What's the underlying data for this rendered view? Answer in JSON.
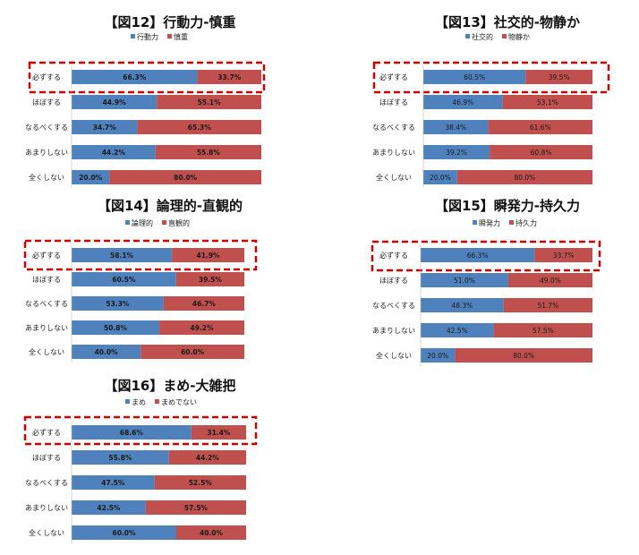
{
  "colors": {
    "series_a": "#4F81BD",
    "series_b": "#C0504D",
    "highlight": "#CC0000"
  },
  "chart_data": [
    {
      "type": "bar",
      "orientation": "horizontal",
      "stacked": "100%",
      "title": "【図12】行動力-慎重",
      "categories": [
        "必ずする",
        "ほぼする",
        "なるべくする",
        "あまりしない",
        "全くしない"
      ],
      "series": [
        {
          "name": "行動力",
          "values": [
            66.3,
            44.9,
            34.7,
            44.2,
            20.0
          ],
          "labels": [
            "66.3%",
            "44.9%",
            "34.7%",
            "44.2%",
            "20.0%"
          ]
        },
        {
          "name": "慎重",
          "values": [
            33.7,
            55.1,
            65.3,
            55.8,
            80.0
          ],
          "labels": [
            "33.7%",
            "55.1%",
            "65.3%",
            "55.8%",
            "80.0%"
          ]
        }
      ],
      "highlighted_category": "必ずする",
      "legend": "top"
    },
    {
      "type": "bar",
      "orientation": "horizontal",
      "stacked": "100%",
      "title": "【図13】社交的-物静か",
      "categories": [
        "必ずする",
        "ほぼする",
        "なるべくする",
        "あまりしない",
        "全くしない"
      ],
      "series": [
        {
          "name": "社交的",
          "values": [
            60.5,
            46.9,
            38.4,
            39.2,
            20.0
          ],
          "labels": [
            "60.5%",
            "46.9%",
            "38.4%",
            "39.2%",
            "20.0%"
          ]
        },
        {
          "name": "物静か",
          "values": [
            39.5,
            53.1,
            61.6,
            60.8,
            80.0
          ],
          "labels": [
            "39.5%",
            "53.1%",
            "61.6%",
            "60.8%",
            "80.0%"
          ]
        }
      ],
      "highlighted_category": "必ずする",
      "legend": "top"
    },
    {
      "type": "bar",
      "orientation": "horizontal",
      "stacked": "100%",
      "title": "【図14】論理的-直観的",
      "categories": [
        "必ずする",
        "ほぼする",
        "なるべくする",
        "あまりしない",
        "全くしない"
      ],
      "series": [
        {
          "name": "論理的",
          "values": [
            58.1,
            60.5,
            53.3,
            50.8,
            40.0
          ],
          "labels": [
            "58.1%",
            "60.5%",
            "53.3%",
            "50.8%",
            "40.0%"
          ]
        },
        {
          "name": "直観的",
          "values": [
            41.9,
            39.5,
            46.7,
            49.2,
            60.0
          ],
          "labels": [
            "41.9%",
            "39.5%",
            "46.7%",
            "49.2%",
            "60.0%"
          ]
        }
      ],
      "highlighted_category": "必ずする",
      "legend": "top"
    },
    {
      "type": "bar",
      "orientation": "horizontal",
      "stacked": "100%",
      "title": "【図15】瞬発力-持久力",
      "categories": [
        "必ずする",
        "ほぼする",
        "なるべくする",
        "あまりしない",
        "全くしない"
      ],
      "series": [
        {
          "name": "瞬発力",
          "values": [
            66.3,
            51.0,
            48.3,
            42.5,
            20.0
          ],
          "labels": [
            "66.3%",
            "51.0%",
            "48.3%",
            "42.5%",
            "20.0%"
          ]
        },
        {
          "name": "持久力",
          "values": [
            33.7,
            49.0,
            51.7,
            57.5,
            80.0
          ],
          "labels": [
            "33.7%",
            "49.0%",
            "51.7%",
            "57.5%",
            "80.0%"
          ]
        }
      ],
      "highlighted_category": "必ずする",
      "legend": "top"
    },
    {
      "type": "bar",
      "orientation": "horizontal",
      "stacked": "100%",
      "title": "【図16】まめ-大雑把",
      "categories": [
        "必ずする",
        "ほぼする",
        "なるべくする",
        "あまりしない",
        "全くしない"
      ],
      "series": [
        {
          "name": "まめ",
          "values": [
            68.6,
            55.8,
            47.5,
            42.5,
            60.0
          ],
          "labels": [
            "68.6%",
            "55.8%",
            "47.5%",
            "42.5%",
            "60.0%"
          ]
        },
        {
          "name": "まめでない",
          "values": [
            31.4,
            44.2,
            52.5,
            57.5,
            40.0
          ],
          "labels": [
            "31.4%",
            "44.2%",
            "52.5%",
            "57.5%",
            "40.0%"
          ]
        }
      ],
      "highlighted_category": "必ずする",
      "legend": "top"
    }
  ]
}
